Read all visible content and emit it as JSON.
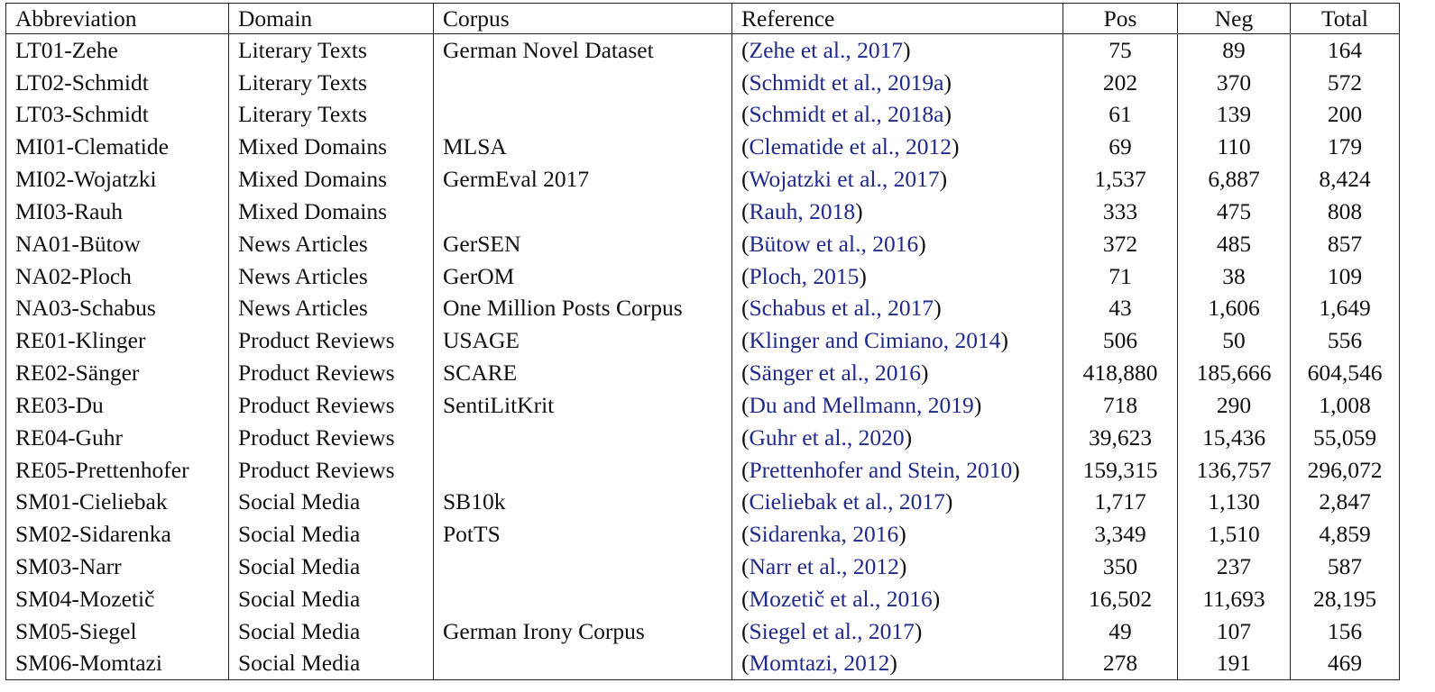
{
  "table": {
    "headers": {
      "abbreviation": "Abbreviation",
      "domain": "Domain",
      "corpus": "Corpus",
      "reference": "Reference",
      "pos": "Pos",
      "neg": "Neg",
      "total": "Total"
    },
    "rows": [
      {
        "abbr": "LT01-Zehe",
        "domain": "Literary Texts",
        "corpus": "German Novel Dataset",
        "ref": "Zehe et al., 2017",
        "pos": "75",
        "neg": "89",
        "total": "164"
      },
      {
        "abbr": "LT02-Schmidt",
        "domain": "Literary Texts",
        "corpus": "",
        "ref": "Schmidt et al., 2019a",
        "pos": "202",
        "neg": "370",
        "total": "572"
      },
      {
        "abbr": "LT03-Schmidt",
        "domain": "Literary Texts",
        "corpus": "",
        "ref": "Schmidt et al., 2018a",
        "pos": "61",
        "neg": "139",
        "total": "200"
      },
      {
        "abbr": "MI01-Clematide",
        "domain": "Mixed Domains",
        "corpus": "MLSA",
        "ref": "Clematide et al., 2012",
        "pos": "69",
        "neg": "110",
        "total": "179"
      },
      {
        "abbr": "MI02-Wojatzki",
        "domain": "Mixed Domains",
        "corpus": "GermEval 2017",
        "ref": "Wojatzki et al., 2017",
        "pos": "1,537",
        "neg": "6,887",
        "total": "8,424"
      },
      {
        "abbr": "MI03-Rauh",
        "domain": "Mixed Domains",
        "corpus": "",
        "ref": "Rauh, 2018",
        "pos": "333",
        "neg": "475",
        "total": "808"
      },
      {
        "abbr": "NA01-Bütow",
        "domain": "News Articles",
        "corpus": "GerSEN",
        "ref": "Bütow et al., 2016",
        "pos": "372",
        "neg": "485",
        "total": "857"
      },
      {
        "abbr": "NA02-Ploch",
        "domain": "News Articles",
        "corpus": "GerOM",
        "ref": "Ploch, 2015",
        "pos": "71",
        "neg": "38",
        "total": "109"
      },
      {
        "abbr": "NA03-Schabus",
        "domain": "News Articles",
        "corpus": "One Million Posts Corpus",
        "ref": "Schabus et al., 2017",
        "pos": "43",
        "neg": "1,606",
        "total": "1,649"
      },
      {
        "abbr": "RE01-Klinger",
        "domain": "Product Reviews",
        "corpus": "USAGE",
        "ref": "Klinger and Cimiano, 2014",
        "pos": "506",
        "neg": "50",
        "total": "556"
      },
      {
        "abbr": "RE02-Sänger",
        "domain": "Product Reviews",
        "corpus": "SCARE",
        "ref": "Sänger et al., 2016",
        "pos": "418,880",
        "neg": "185,666",
        "total": "604,546"
      },
      {
        "abbr": "RE03-Du",
        "domain": "Product Reviews",
        "corpus": "SentiLitKrit",
        "ref": "Du and Mellmann, 2019",
        "pos": "718",
        "neg": "290",
        "total": "1,008"
      },
      {
        "abbr": "RE04-Guhr",
        "domain": "Product Reviews",
        "corpus": "",
        "ref": "Guhr et al., 2020",
        "pos": "39,623",
        "neg": "15,436",
        "total": "55,059"
      },
      {
        "abbr": "RE05-Prettenhofer",
        "domain": "Product Reviews",
        "corpus": "",
        "ref": "Prettenhofer and Stein, 2010",
        "pos": "159,315",
        "neg": "136,757",
        "total": "296,072"
      },
      {
        "abbr": "SM01-Cieliebak",
        "domain": "Social Media",
        "corpus": "SB10k",
        "ref": "Cieliebak et al., 2017",
        "pos": "1,717",
        "neg": "1,130",
        "total": "2,847"
      },
      {
        "abbr": "SM02-Sidarenka",
        "domain": "Social Media",
        "corpus": "PotTS",
        "ref": "Sidarenka, 2016",
        "pos": "3,349",
        "neg": "1,510",
        "total": "4,859"
      },
      {
        "abbr": "SM03-Narr",
        "domain": "Social Media",
        "corpus": "",
        "ref": "Narr et al., 2012",
        "pos": "350",
        "neg": "237",
        "total": "587"
      },
      {
        "abbr": "SM04-Mozetič",
        "domain": "Social Media",
        "corpus": "",
        "ref": "Mozetič et al., 2016",
        "pos": "16,502",
        "neg": "11,693",
        "total": "28,195"
      },
      {
        "abbr": "SM05-Siegel",
        "domain": "Social Media",
        "corpus": "German Irony Corpus",
        "ref": "Siegel et al., 2017",
        "pos": "49",
        "neg": "107",
        "total": "156"
      },
      {
        "abbr": "SM06-Momtazi",
        "domain": "Social Media",
        "corpus": "",
        "ref": "Momtazi, 2012",
        "pos": "278",
        "neg": "191",
        "total": "469"
      }
    ],
    "colors": {
      "link": "#1f2a8c",
      "text": "#111111",
      "rule": "#222222"
    }
  }
}
